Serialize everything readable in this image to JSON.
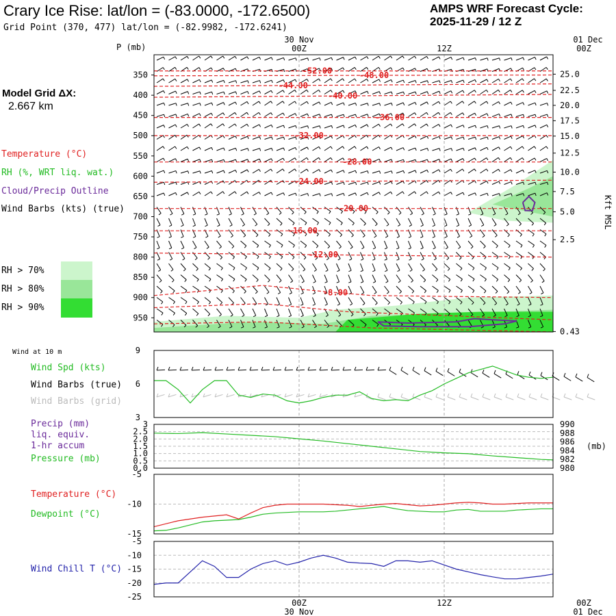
{
  "header": {
    "title": "Crary Ice Rise:  lat/lon = (-83.0000, -172.6500)",
    "subtitle": "Grid Point (370, 477) lat/lon = (-82.9982, -172.6241)",
    "cycle_line1": "AMPS WRF Forecast Cycle:",
    "cycle_line2": "2025-11-29 / 12  Z"
  },
  "time_axis": {
    "top_dates": [
      "30 Nov",
      "01 Dec"
    ],
    "ticks": [
      "00Z",
      "12Z",
      "00Z"
    ],
    "bottom_dates": [
      "30 Nov",
      "01 Dec"
    ],
    "tick_hours": [
      12,
      24,
      36
    ],
    "range_hours": [
      0,
      33
    ]
  },
  "left_panel": {
    "grid_label": "Model Grid ΔX:",
    "grid_value": "2.667 km",
    "legend": [
      {
        "text": "Temperature (°C)",
        "color": "#e02020"
      },
      {
        "text": "RH (%, WRT liq. wat.)",
        "color": "#22bb22"
      },
      {
        "text": "Cloud/Precip Outline",
        "color": "#6a2a9a"
      },
      {
        "text": "Wind Barbs (kts) (true)",
        "color": "#000000"
      }
    ],
    "rh_legend": [
      {
        "text": "RH > 70%",
        "color": "#ccf5cc"
      },
      {
        "text": "RH > 80%",
        "color": "#99e699"
      },
      {
        "text": "RH > 90%",
        "color": "#33dd33"
      }
    ]
  },
  "chart_data": [
    {
      "type": "cross-section",
      "name_hint": "upper",
      "yaxis_left": {
        "label": "P (mb)",
        "ticks": [
          "350",
          "400",
          "450",
          "500",
          "550",
          "600",
          "650",
          "700",
          "750",
          "800",
          "850",
          "900",
          "950"
        ],
        "range_mb": [
          300,
          985
        ]
      },
      "yaxis_right": {
        "label": "Kft MSL",
        "ticks": [
          "25.0",
          "22.5",
          "20.0",
          "17.5",
          "15.0",
          "12.5",
          "10.0",
          "7.5",
          "5.0",
          "2.5",
          "0.43"
        ],
        "tick_mb": [
          348,
          388,
          425,
          463,
          501,
          543,
          590,
          638,
          688,
          757,
          984
        ]
      },
      "temperature_contours": [
        {
          "label": "-52.00",
          "label_x_h": 13.5,
          "points_h": [
            [
              0,
              340
            ],
            [
              33,
              340
            ]
          ]
        },
        {
          "label": "-48.00",
          "label_x_h": 18.2,
          "points_h": [
            [
              0,
              352
            ],
            [
              33,
              350
            ]
          ]
        },
        {
          "label": "-44.00",
          "label_x_h": 11.5,
          "points_h": [
            [
              0,
              378
            ],
            [
              33,
              372
            ]
          ]
        },
        {
          "label": "-40.00",
          "label_x_h": 15.6,
          "points_h": [
            [
              0,
              405
            ],
            [
              33,
              398
            ]
          ]
        },
        {
          "label": "-36.00",
          "label_x_h": 19.5,
          "points_h": [
            [
              0,
              455
            ],
            [
              33,
              455
            ]
          ]
        },
        {
          "label": "-32.00",
          "label_x_h": 12.8,
          "points_h": [
            [
              0,
              500
            ],
            [
              33,
              500
            ]
          ]
        },
        {
          "label": "-28.00",
          "label_x_h": 16.8,
          "points_h": [
            [
              0,
              565
            ],
            [
              33,
              565
            ]
          ]
        },
        {
          "label": "-24.00",
          "label_x_h": 12.8,
          "points_h": [
            [
              0,
              615
            ],
            [
              33,
              610
            ]
          ]
        },
        {
          "label": "-20.00",
          "label_x_h": 16.5,
          "points_h": [
            [
              0,
              680
            ],
            [
              33,
              680
            ]
          ]
        },
        {
          "label": "-16.00",
          "label_x_h": 12.3,
          "points_h": [
            [
              0,
              735
            ],
            [
              33,
              735
            ]
          ]
        },
        {
          "label": "-12.00",
          "label_x_h": 14.0,
          "points_h": [
            [
              0,
              790
            ],
            [
              33,
              800
            ]
          ]
        },
        {
          "label": "-8.00",
          "label_x_h": 15.0,
          "points_h": [
            [
              0,
              895
            ],
            [
              9,
              870
            ],
            [
              14,
              885
            ],
            [
              18,
              895
            ],
            [
              33,
              900
            ]
          ]
        },
        {
          "label": "",
          "label_x_h": 0,
          "points_h": [
            [
              0,
              925
            ],
            [
              9,
              915
            ],
            [
              16,
              935
            ],
            [
              33,
              955
            ]
          ]
        },
        {
          "label": "",
          "label_x_h": 0,
          "points_h": [
            [
              0,
              965
            ],
            [
              9,
              960
            ],
            [
              18,
              975
            ],
            [
              33,
              985
            ]
          ]
        }
      ],
      "rh_regions": [
        {
          "level": 70,
          "points_h": [
            [
              0,
              960
            ],
            [
              6,
              945
            ],
            [
              12,
              950
            ],
            [
              15,
              930
            ],
            [
              20,
              920
            ],
            [
              26,
              900
            ],
            [
              33,
              895
            ],
            [
              33,
              985
            ],
            [
              0,
              985
            ]
          ]
        },
        {
          "level": 70,
          "points_h": [
            [
              26,
              690
            ],
            [
              30,
              620
            ],
            [
              33,
              560
            ],
            [
              33,
              715
            ],
            [
              29,
              710
            ]
          ]
        },
        {
          "level": 80,
          "points_h": [
            [
              0,
              975
            ],
            [
              8,
              960
            ],
            [
              14,
              965
            ],
            [
              18,
              945
            ],
            [
              24,
              940
            ],
            [
              33,
              930
            ],
            [
              33,
              985
            ],
            [
              0,
              985
            ]
          ]
        },
        {
          "level": 80,
          "points_h": [
            [
              28,
              670
            ],
            [
              31,
              630
            ],
            [
              33,
              600
            ],
            [
              33,
              700
            ]
          ]
        },
        {
          "level": 90,
          "points_h": [
            [
              15,
              985
            ],
            [
              16,
              955
            ],
            [
              22,
              940
            ],
            [
              27,
              935
            ],
            [
              33,
              935
            ],
            [
              33,
              985
            ]
          ]
        }
      ],
      "cloud_outline": [
        {
          "points_h": [
            [
              18.5,
              960
            ],
            [
              21,
              963
            ],
            [
              25,
              960
            ],
            [
              26.5,
              952
            ],
            [
              28,
              955
            ],
            [
              30,
              958
            ],
            [
              29,
              965
            ],
            [
              26,
              972
            ],
            [
              22,
              972
            ],
            [
              19,
              970
            ],
            [
              18.5,
              960
            ]
          ]
        },
        {
          "points_h": [
            [
              30.5,
              665
            ],
            [
              31,
              650
            ],
            [
              31.5,
              665
            ],
            [
              31.3,
              685
            ],
            [
              30.7,
              685
            ],
            [
              30.5,
              665
            ]
          ]
        }
      ]
    },
    {
      "type": "line",
      "name_hint": "wind10m",
      "header": "Wind at 10 m",
      "legend": [
        {
          "text": "Wind Spd (kts)",
          "color": "#22bb22"
        },
        {
          "text": "Wind Barbs (true)",
          "color": "#000000"
        },
        {
          "text": "Wind Barbs (grid)",
          "color": "#bbbbbb"
        }
      ],
      "yaxis": {
        "ticks": [
          "9",
          "6",
          "3"
        ],
        "ylim": [
          3,
          9
        ]
      },
      "x_hours": [
        0,
        1,
        2,
        3,
        4,
        5,
        6,
        7,
        8,
        9,
        10,
        11,
        12,
        13,
        14,
        15,
        16,
        17,
        18,
        19,
        20,
        21,
        22,
        23,
        24,
        25,
        26,
        27,
        28,
        29,
        30,
        31,
        32,
        33
      ],
      "series": [
        {
          "color": "#22bb22",
          "values": [
            6.3,
            6.3,
            5.5,
            4.3,
            5.5,
            6.3,
            6.3,
            5.0,
            4.8,
            5.1,
            5.0,
            4.5,
            4.3,
            4.5,
            4.8,
            5.0,
            5.0,
            5.3,
            4.7,
            4.5,
            4.6,
            4.5,
            5.0,
            5.4,
            6.0,
            6.5,
            7.0,
            7.3,
            7.6,
            7.2,
            6.8,
            6.6,
            6.5,
            6.6
          ]
        }
      ]
    },
    {
      "type": "line",
      "name_hint": "precip-pressure",
      "legend": [
        {
          "text": "Precip (mm)",
          "color": "#6a2a9a"
        },
        {
          "text": "liq. equiv.",
          "color": "#6a2a9a"
        },
        {
          "text": "1-hr accum",
          "color": "#6a2a9a"
        },
        {
          "text": "Pressure (mb)",
          "color": "#22bb22"
        }
      ],
      "yaxis_left": {
        "ticks": [
          "3",
          "2.5",
          "2.0",
          "1.5",
          "1.0",
          "0.5",
          "0.0"
        ],
        "ylim": [
          0,
          3
        ]
      },
      "yaxis_right": {
        "label": "(mb)",
        "ticks": [
          "990",
          "988",
          "986",
          "984",
          "982",
          "980"
        ],
        "ylim": [
          980,
          990
        ]
      },
      "x_hours": [
        0,
        2,
        4,
        6,
        8,
        10,
        12,
        14,
        16,
        18,
        20,
        22,
        24,
        26,
        28,
        30,
        32,
        33
      ],
      "series": [
        {
          "color": "#22bb22",
          "axis": "right",
          "values": [
            988.0,
            987.9,
            988.1,
            987.8,
            987.5,
            987.2,
            986.7,
            986.2,
            985.6,
            985.0,
            984.4,
            983.8,
            983.5,
            983.3,
            982.8,
            982.4,
            982.0,
            981.9
          ]
        }
      ]
    },
    {
      "type": "line",
      "name_hint": "temp-dewpoint",
      "legend": [
        {
          "text": "Temperature (°C)",
          "color": "#e02020"
        },
        {
          "text": "Dewpoint (°C)",
          "color": "#22bb22"
        }
      ],
      "yaxis": {
        "ticks": [
          "-5",
          "-10",
          "-15"
        ],
        "ylim": [
          -15,
          -5
        ]
      },
      "x_hours": [
        0,
        1,
        2,
        3,
        4,
        5,
        6,
        7,
        8,
        9,
        10,
        11,
        12,
        13,
        14,
        15,
        16,
        17,
        18,
        19,
        20,
        21,
        22,
        23,
        24,
        25,
        26,
        27,
        28,
        29,
        30,
        31,
        32,
        33
      ],
      "series": [
        {
          "color": "#e02020",
          "values": [
            -13.8,
            -13.3,
            -12.8,
            -12.5,
            -12.2,
            -12.0,
            -11.8,
            -12.5,
            -11.5,
            -10.6,
            -10.2,
            -10.0,
            -10.0,
            -10.0,
            -10.0,
            -10.1,
            -10.2,
            -10.4,
            -10.2,
            -10.0,
            -9.9,
            -10.1,
            -10.3,
            -10.2,
            -10.0,
            -9.8,
            -9.7,
            -9.8,
            -10.0,
            -10.0,
            -9.9,
            -9.8,
            -9.8,
            -9.8
          ]
        },
        {
          "color": "#22bb22",
          "values": [
            -14.5,
            -14.4,
            -14.0,
            -13.5,
            -13.0,
            -12.8,
            -12.7,
            -12.6,
            -12.2,
            -11.7,
            -11.5,
            -11.4,
            -11.3,
            -11.3,
            -11.3,
            -11.2,
            -11.0,
            -10.8,
            -10.6,
            -10.4,
            -10.8,
            -11.1,
            -11.2,
            -11.3,
            -11.3,
            -11.0,
            -10.9,
            -11.2,
            -11.2,
            -11.2,
            -11.0,
            -10.9,
            -10.8,
            -10.8
          ]
        }
      ]
    },
    {
      "type": "line",
      "name_hint": "wind-chill",
      "legend": [
        {
          "text": "Wind Chill T (°C)",
          "color": "#2222aa"
        }
      ],
      "yaxis": {
        "ticks": [
          "-5",
          "-10",
          "-15",
          "-20",
          "-25"
        ],
        "ylim": [
          -25,
          -5
        ]
      },
      "x_hours": [
        0,
        1,
        2,
        3,
        4,
        5,
        6,
        7,
        8,
        9,
        10,
        11,
        12,
        13,
        14,
        15,
        16,
        17,
        18,
        19,
        20,
        21,
        22,
        23,
        24,
        25,
        26,
        27,
        28,
        29,
        30,
        31,
        32,
        33
      ],
      "series": [
        {
          "color": "#2222aa",
          "values": [
            -20.5,
            -20.0,
            -20.0,
            -16.0,
            -12.0,
            -14.0,
            -18.0,
            -18.0,
            -15.0,
            -13.0,
            -12.0,
            -13.5,
            -12.5,
            -11.0,
            -10.0,
            -11.0,
            -12.5,
            -12.8,
            -13.0,
            -14.0,
            -12.0,
            -12.0,
            -12.5,
            -12.0,
            -13.5,
            -15.0,
            -16.0,
            -17.0,
            -17.8,
            -18.5,
            -18.5,
            -18.0,
            -17.5,
            -16.8
          ]
        }
      ]
    }
  ]
}
